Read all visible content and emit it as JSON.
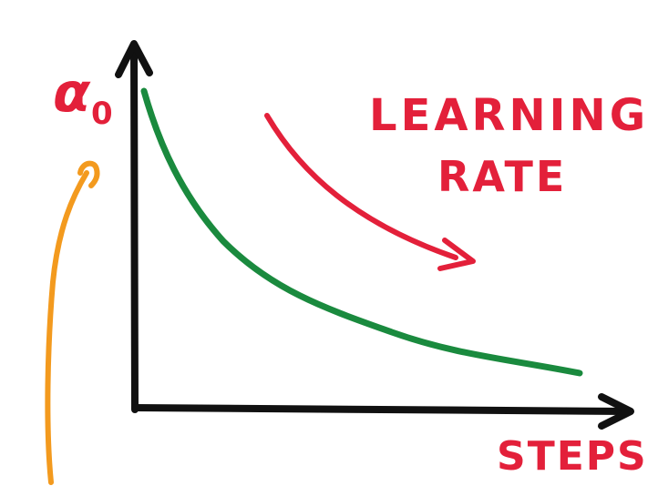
{
  "labels": {
    "y_axis_symbol": "α",
    "y_axis_subscript": "0",
    "annotation_line1": "LEARNING",
    "annotation_line2": "RATE",
    "x_axis_label": "STEPS"
  },
  "colors": {
    "axis": "#111111",
    "curve": "#1a8a3e",
    "annotation": "#e3203a",
    "pointer": "#f39a1e",
    "background": "#ffffff"
  },
  "icons": {
    "decrease_arrow": "arrow-down-right-icon",
    "pointer_arrow": "arrow-up-icon"
  }
}
